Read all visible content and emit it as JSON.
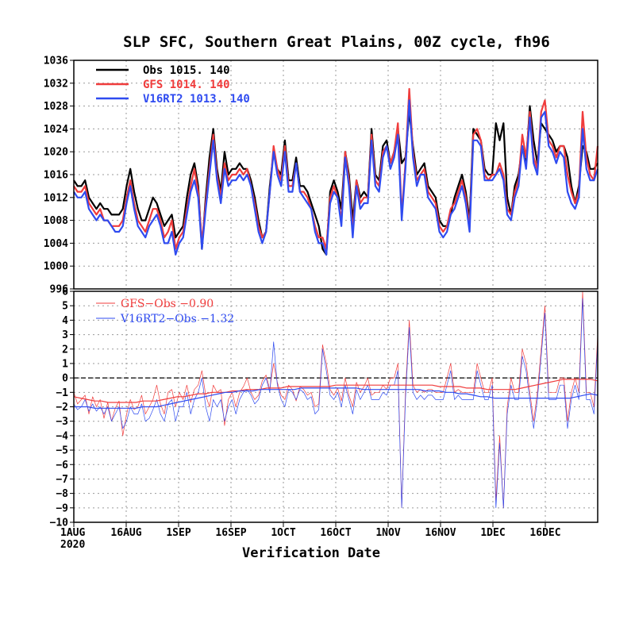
{
  "title": "SLP SFC, Southern Great Plains, 00Z cycle, fh96",
  "xlabel": "Verification Date",
  "x_year": "2020",
  "colors": {
    "obs": "#000000",
    "gfs": "#f03c3c",
    "v16": "#2f4bf0"
  },
  "chart_data": [
    {
      "type": "line",
      "panel": "top",
      "ylim": [
        996,
        1036
      ],
      "yticks": [
        "1036",
        "1032",
        "1028",
        "1024",
        "1020",
        "1016",
        "1012",
        "1008",
        "1004",
        "1000",
        "996"
      ],
      "xticks": [
        "1AUG",
        "16AUG",
        "1SEP",
        "16SEP",
        "1OCT",
        "16OCT",
        "1NOV",
        "16NOV",
        "1DEC",
        "16DEC"
      ],
      "grid": true,
      "legend_position": "top-left",
      "legend": [
        {
          "name": "Obs",
          "mean": "1015.",
          "count": "140",
          "color": "#000000"
        },
        {
          "name": "GFS",
          "mean": "1014.",
          "count": "140",
          "color": "#f03c3c"
        },
        {
          "name": "V16RT2",
          "mean": "1013.",
          "count": "140",
          "color": "#2f4bf0"
        }
      ],
      "series": [
        {
          "name": "Obs",
          "color": "#000000",
          "values": [
            1015,
            1014,
            1014,
            1015,
            1012,
            1011,
            1010,
            1011,
            1010,
            1010,
            1009,
            1009,
            1009,
            1010,
            1014,
            1017,
            1013,
            1010,
            1008,
            1008,
            1010,
            1012,
            1011,
            1009,
            1007,
            1008,
            1009,
            1005,
            1006,
            1007,
            1012,
            1016,
            1018,
            1014,
            1003,
            1012,
            1019,
            1024,
            1017,
            1013,
            1020,
            1016,
            1017,
            1017,
            1018,
            1017,
            1017,
            1015,
            1012,
            1008,
            1005,
            1006,
            1014,
            1020,
            1017,
            1016,
            1022,
            1015,
            1015,
            1019,
            1014,
            1014,
            1013,
            1011,
            1009,
            1007,
            1003,
            1002,
            1013,
            1015,
            1013,
            1010,
            1020,
            1016,
            1008,
            1015,
            1012,
            1013,
            1012,
            1024,
            1016,
            1015,
            1021,
            1022,
            1018,
            1020,
            1024,
            1018,
            1019,
            1027,
            1021,
            1016,
            1017,
            1018,
            1014,
            1013,
            1012,
            1008,
            1007,
            1007,
            1009,
            1012,
            1014,
            1016,
            1013,
            1008,
            1024,
            1023,
            1022,
            1017,
            1016,
            1016,
            1025,
            1022,
            1025,
            1012,
            1009,
            1014,
            1016,
            1021,
            1018,
            1028,
            1022,
            1018,
            1025,
            1024,
            1023,
            1022,
            1020,
            1021,
            1021,
            1019,
            1014,
            1011,
            1014,
            1021,
            1020,
            1017,
            1017,
            1018
          ]
        },
        {
          "name": "GFS",
          "color": "#f03c3c",
          "values": [
            1014,
            1013,
            1013,
            1014,
            1011,
            1010,
            1009,
            1010,
            1008,
            1008,
            1007,
            1007,
            1007,
            1008,
            1012,
            1015,
            1011,
            1008,
            1007,
            1006,
            1008,
            1010,
            1010,
            1008,
            1005,
            1006,
            1008,
            1003,
            1005,
            1006,
            1010,
            1014,
            1017,
            1013,
            1004,
            1011,
            1017,
            1023,
            1016,
            1012,
            1018,
            1015,
            1016,
            1016,
            1017,
            1016,
            1017,
            1014,
            1011,
            1007,
            1005,
            1006,
            1013,
            1021,
            1017,
            1015,
            1021,
            1014,
            1014,
            1018,
            1013,
            1013,
            1012,
            1010,
            1007,
            1005,
            1005,
            1003,
            1012,
            1014,
            1012,
            1008,
            1020,
            1015,
            1006,
            1015,
            1011,
            1012,
            1012,
            1023,
            1015,
            1014,
            1020,
            1021,
            1018,
            1020,
            1025,
            1009,
            1018,
            1031,
            1020,
            1015,
            1016,
            1017,
            1013,
            1012,
            1011,
            1007,
            1006,
            1007,
            1010,
            1011,
            1013,
            1015,
            1012,
            1007,
            1023,
            1024,
            1022,
            1016,
            1015,
            1016,
            1016,
            1018,
            1016,
            1010,
            1009,
            1013,
            1015,
            1023,
            1019,
            1027,
            1019,
            1017,
            1027,
            1029,
            1022,
            1021,
            1019,
            1021,
            1021,
            1016,
            1013,
            1011,
            1013,
            1027,
            1019,
            1016,
            1015,
            1021
          ]
        },
        {
          "name": "V16RT2",
          "color": "#2f4bf0",
          "values": [
            1013,
            1012,
            1012,
            1013,
            1010,
            1009,
            1008,
            1009,
            1008,
            1008,
            1007,
            1006,
            1006,
            1007,
            1011,
            1014,
            1010,
            1007,
            1006,
            1005,
            1007,
            1008,
            1009,
            1007,
            1004,
            1004,
            1006,
            1002,
            1004,
            1005,
            1009,
            1013,
            1015,
            1012,
            1003,
            1010,
            1016,
            1022,
            1015,
            1011,
            1017,
            1014,
            1015,
            1015,
            1016,
            1015,
            1016,
            1014,
            1010,
            1006,
            1004,
            1006,
            1013,
            1020,
            1016,
            1014,
            1020,
            1013,
            1013,
            1018,
            1013,
            1012,
            1011,
            1010,
            1006,
            1004,
            1004,
            1002,
            1011,
            1013,
            1012,
            1007,
            1019,
            1014,
            1005,
            1014,
            1010,
            1011,
            1011,
            1022,
            1014,
            1013,
            1019,
            1021,
            1017,
            1019,
            1023,
            1008,
            1017,
            1029,
            1019,
            1014,
            1016,
            1016,
            1012,
            1011,
            1010,
            1006,
            1005,
            1006,
            1009,
            1010,
            1012,
            1014,
            1011,
            1006,
            1022,
            1022,
            1021,
            1015,
            1015,
            1015,
            1016,
            1017,
            1015,
            1009,
            1008,
            1012,
            1014,
            1021,
            1017,
            1026,
            1018,
            1016,
            1026,
            1027,
            1021,
            1020,
            1018,
            1020,
            1019,
            1013,
            1011,
            1010,
            1012,
            1024,
            1017,
            1015,
            1015,
            1017
          ]
        }
      ]
    },
    {
      "type": "line",
      "panel": "bottom",
      "ylim": [
        -10,
        6
      ],
      "yticks": [
        "6",
        "5",
        "4",
        "3",
        "2",
        "1",
        "0",
        "−1",
        "−2",
        "−3",
        "−4",
        "−5",
        "−6",
        "−7",
        "−8",
        "−9",
        "−10"
      ],
      "grid": true,
      "legend_position": "top-left",
      "legend": [
        {
          "name": "GFS−Obs",
          "mean": "−0.90",
          "color": "#f03c3c"
        },
        {
          "name": "V16RT2−Obs",
          "mean": "−1.32",
          "color": "#2f4bf0"
        }
      ],
      "series": [
        {
          "name": "GFS−Obs",
          "color": "#f03c3c",
          "values": [
            -1.0,
            -1.8,
            -1.5,
            -1.2,
            -2.5,
            -1.3,
            -2.0,
            -1.5,
            -2.8,
            -1.7,
            -3.0,
            -2.1,
            -1.6,
            -4.0,
            -2.5,
            -1.5,
            -2.2,
            -2.0,
            -1.2,
            -2.5,
            -2.0,
            -1.5,
            -0.5,
            -1.8,
            -2.5,
            -1.0,
            -0.8,
            -2.0,
            -1.0,
            -1.5,
            -0.5,
            -1.7,
            -0.8,
            -0.5,
            0.5,
            -1.2,
            -2.0,
            -0.5,
            -1.0,
            -0.8,
            -3.3,
            -1.5,
            -1.0,
            -2.0,
            -1.0,
            -0.6,
            0.0,
            -1.0,
            -1.5,
            -1.2,
            -0.2,
            0.2,
            -0.8,
            1.0,
            -0.3,
            -1.2,
            -1.5,
            -0.5,
            -0.8,
            -1.6,
            -0.6,
            -0.8,
            -1.2,
            -1.0,
            -2.0,
            -1.8,
            2.3,
            1.0,
            -0.8,
            -1.2,
            -0.7,
            -1.6,
            0.0,
            -1.2,
            -2.0,
            -0.3,
            -1.0,
            -0.6,
            0.0,
            -1.2,
            -1.0,
            -1.0,
            -0.5,
            -0.8,
            0.0,
            0.0,
            1.0,
            -9.0,
            -1.0,
            4.0,
            -0.5,
            -1.0,
            -0.8,
            -1.0,
            -0.8,
            -0.8,
            -1.0,
            -1.0,
            -1.0,
            0.0,
            1.0,
            -1.0,
            -0.8,
            -1.0,
            -1.0,
            -1.0,
            -1.0,
            1.0,
            0.0,
            -1.0,
            -1.0,
            0.0,
            -8.5,
            -4.0,
            -9.0,
            -2.0,
            0.0,
            -1.0,
            -1.0,
            2.0,
            1.0,
            -1.0,
            -3.0,
            -1.0,
            2.0,
            5.0,
            -1.0,
            -1.0,
            -1.0,
            0.0,
            0.0,
            -3.0,
            -1.0,
            0.0,
            -1.0,
            6.0,
            -1.0,
            -1.0,
            -2.0,
            3.0
          ]
        },
        {
          "name": "V16RT2−Obs",
          "color": "#2f4bf0",
          "values": [
            -1.8,
            -2.2,
            -2.0,
            -1.5,
            -2.3,
            -1.8,
            -2.3,
            -2.0,
            -2.5,
            -2.0,
            -3.0,
            -2.5,
            -2.0,
            -3.5,
            -3.0,
            -2.0,
            -2.5,
            -2.5,
            -1.8,
            -3.0,
            -2.8,
            -2.2,
            -1.5,
            -2.5,
            -3.0,
            -1.8,
            -1.5,
            -3.0,
            -2.0,
            -2.0,
            -1.0,
            -2.5,
            -1.5,
            -1.0,
            0.0,
            -2.0,
            -3.0,
            -1.5,
            -2.0,
            -1.5,
            -3.0,
            -2.0,
            -1.5,
            -2.5,
            -1.5,
            -1.0,
            -0.8,
            -1.2,
            -1.8,
            -1.5,
            -0.5,
            0.0,
            -1.0,
            2.5,
            -0.5,
            -1.5,
            -2.0,
            -0.8,
            -1.0,
            -1.5,
            -0.8,
            -1.0,
            -1.5,
            -1.3,
            -2.5,
            -2.2,
            2.0,
            0.5,
            -1.2,
            -1.5,
            -1.0,
            -2.0,
            -0.5,
            -1.5,
            -2.5,
            -0.8,
            -1.5,
            -1.0,
            -0.5,
            -1.5,
            -1.5,
            -1.5,
            -1.0,
            -1.2,
            -0.5,
            -0.5,
            0.5,
            -9.0,
            -1.5,
            3.5,
            -1.0,
            -1.5,
            -1.2,
            -1.5,
            -1.2,
            -1.2,
            -1.5,
            -1.5,
            -1.5,
            -0.5,
            0.5,
            -1.5,
            -1.2,
            -1.5,
            -1.5,
            -1.5,
            -1.5,
            0.5,
            -0.5,
            -1.5,
            -1.5,
            -0.5,
            -9.0,
            -4.5,
            -9.0,
            -2.5,
            -0.5,
            -1.5,
            -1.5,
            1.5,
            0.5,
            -1.5,
            -3.5,
            -1.5,
            1.5,
            4.5,
            -1.5,
            -1.5,
            -1.5,
            -0.5,
            -0.5,
            -3.5,
            -1.5,
            -0.5,
            -1.5,
            5.5,
            -1.5,
            -1.5,
            -2.5,
            2.5
          ]
        },
        {
          "name": "GFS−Obs running mean",
          "color": "#f03c3c",
          "values": [
            -1.3,
            -1.4,
            -1.5,
            -1.6,
            -1.6,
            -1.7,
            -1.7,
            -1.7,
            -1.7,
            -1.7,
            -1.6,
            -1.6,
            -1.6,
            -1.5,
            -1.4,
            -1.3,
            -1.3,
            -1.2,
            -1.1,
            -1.1,
            -1.0,
            -1.0,
            -1.0,
            -0.9,
            -0.9,
            -0.8,
            -0.8,
            -0.8,
            -0.7,
            -0.7,
            -0.7,
            -0.6,
            -0.6,
            -0.6,
            -0.6,
            -0.6,
            -0.6,
            -0.6,
            -0.5,
            -0.5,
            -0.5,
            -0.5,
            -0.5,
            -0.5,
            -0.5,
            -0.5,
            -0.5,
            -0.5,
            -0.5,
            -0.5,
            -0.5,
            -0.5,
            -0.5,
            -0.6,
            -0.6,
            -0.6,
            -0.6,
            -0.7,
            -0.7,
            -0.7,
            -0.8,
            -0.8,
            -0.8,
            -0.8,
            -0.8,
            -0.7,
            -0.6,
            -0.5,
            -0.4,
            -0.3,
            -0.2,
            -0.1,
            -0.1,
            -0.1,
            -0.1,
            -0.1,
            -0.2
          ]
        },
        {
          "name": "V16RT2−Obs running mean",
          "color": "#2f4bf0",
          "values": [
            -2.0,
            -2.0,
            -2.0,
            -2.1,
            -2.1,
            -2.1,
            -2.1,
            -2.1,
            -2.1,
            -2.1,
            -2.0,
            -2.0,
            -2.0,
            -1.9,
            -1.8,
            -1.7,
            -1.6,
            -1.5,
            -1.4,
            -1.3,
            -1.2,
            -1.1,
            -1.0,
            -1.0,
            -0.9,
            -0.9,
            -0.9,
            -0.8,
            -0.8,
            -0.8,
            -0.8,
            -0.8,
            -0.8,
            -0.7,
            -0.7,
            -0.7,
            -0.7,
            -0.7,
            -0.7,
            -0.7,
            -0.7,
            -0.7,
            -0.8,
            -0.8,
            -0.8,
            -0.8,
            -0.8,
            -0.8,
            -0.8,
            -0.8,
            -0.8,
            -0.9,
            -0.9,
            -0.9,
            -1.0,
            -1.0,
            -1.1,
            -1.1,
            -1.2,
            -1.3,
            -1.3,
            -1.4,
            -1.4,
            -1.4,
            -1.4,
            -1.4,
            -1.4,
            -1.4,
            -1.4,
            -1.4,
            -1.4,
            -1.4,
            -1.4,
            -1.3,
            -1.2,
            -1.1,
            -1.2
          ]
        }
      ]
    }
  ]
}
